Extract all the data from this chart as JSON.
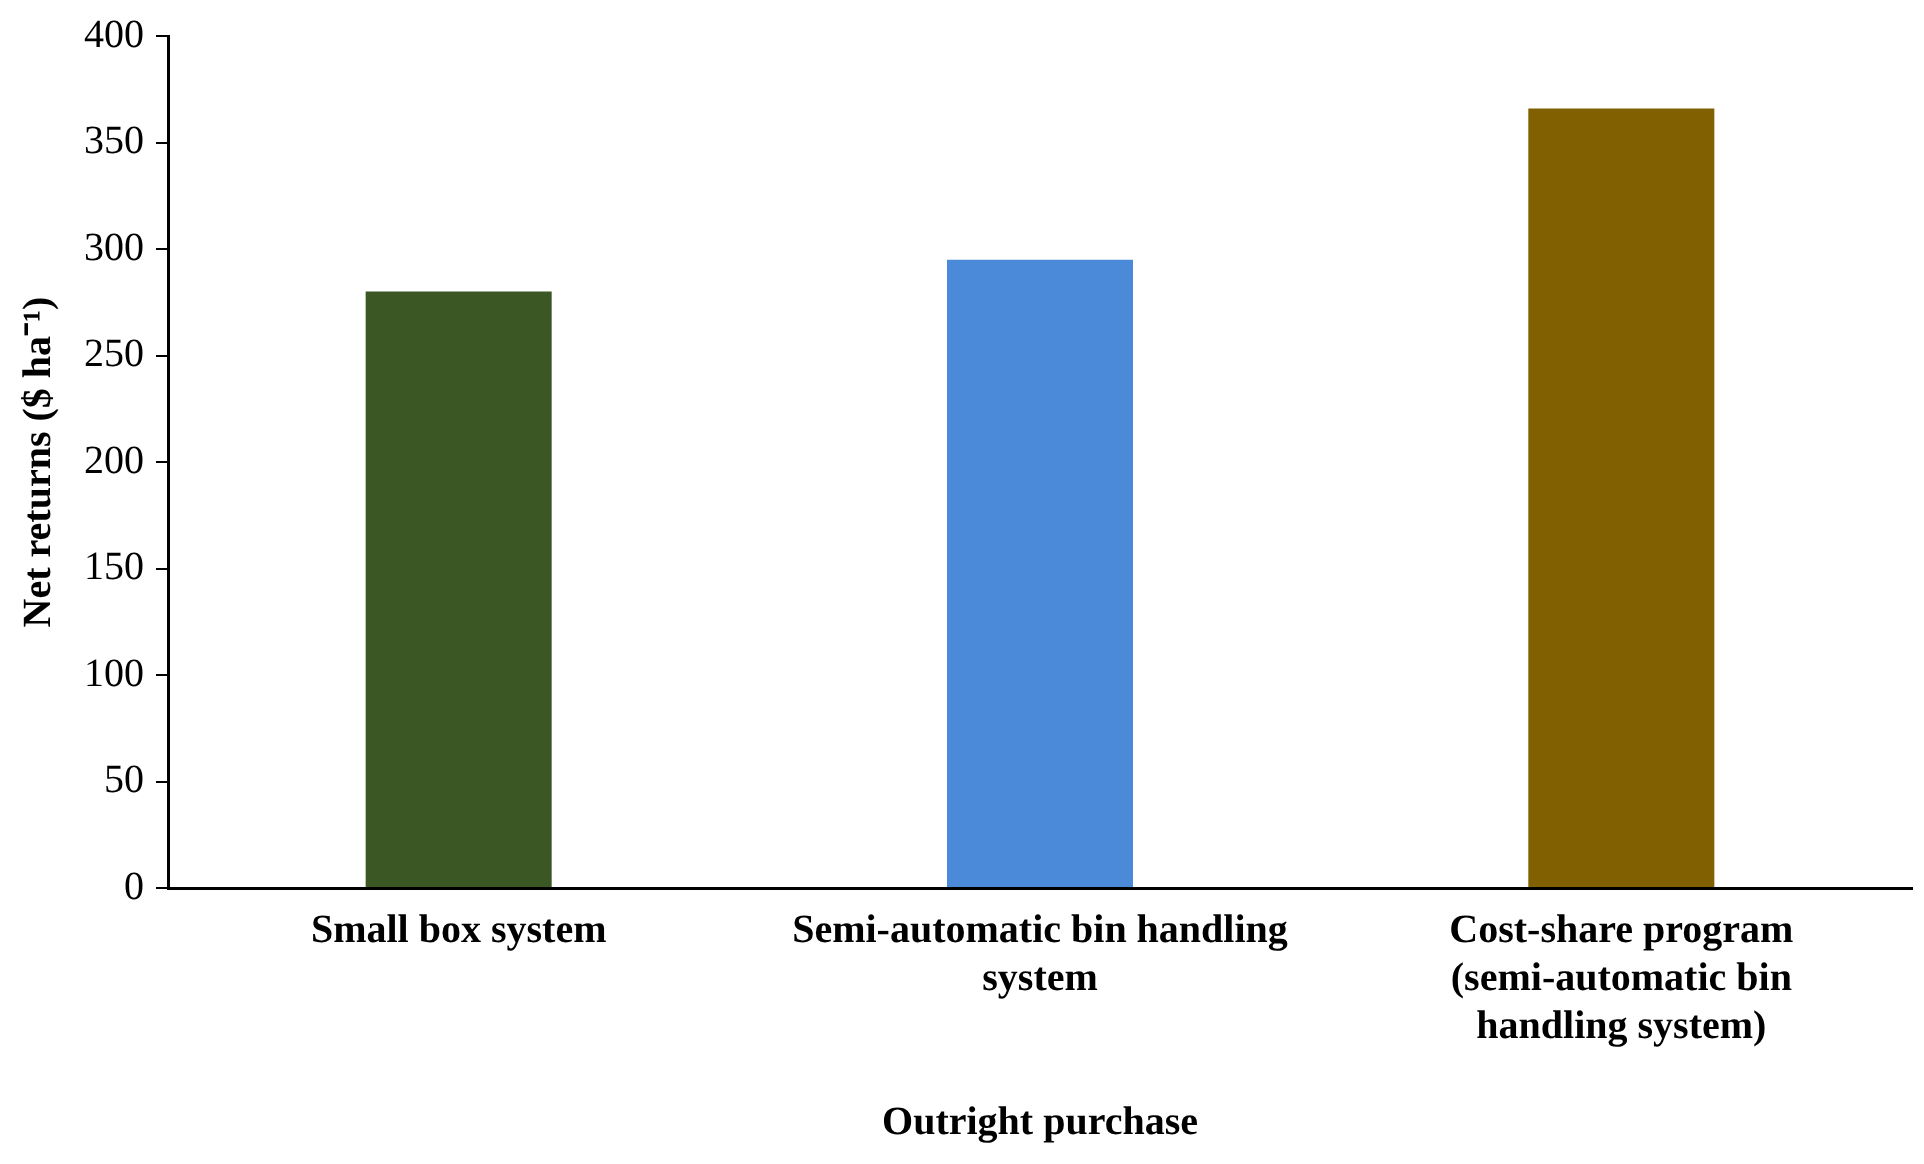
{
  "chart_data": {
    "type": "bar",
    "xlabel": "Outright purchase",
    "ylabel": "Net returns ($ ha⁻¹)",
    "categories": [
      "Small box system",
      "Semi-automatic bin handling system",
      "Cost-share program (semi-automatic bin handling system)"
    ],
    "values": [
      280,
      295,
      366
    ],
    "colors": [
      "#3b5724",
      "#4a8ad8",
      "#806000"
    ],
    "ylim": [
      0,
      400
    ],
    "yticks": [
      0,
      50,
      100,
      150,
      200,
      250,
      300,
      350,
      400
    ],
    "grid": false,
    "legend": false
  }
}
